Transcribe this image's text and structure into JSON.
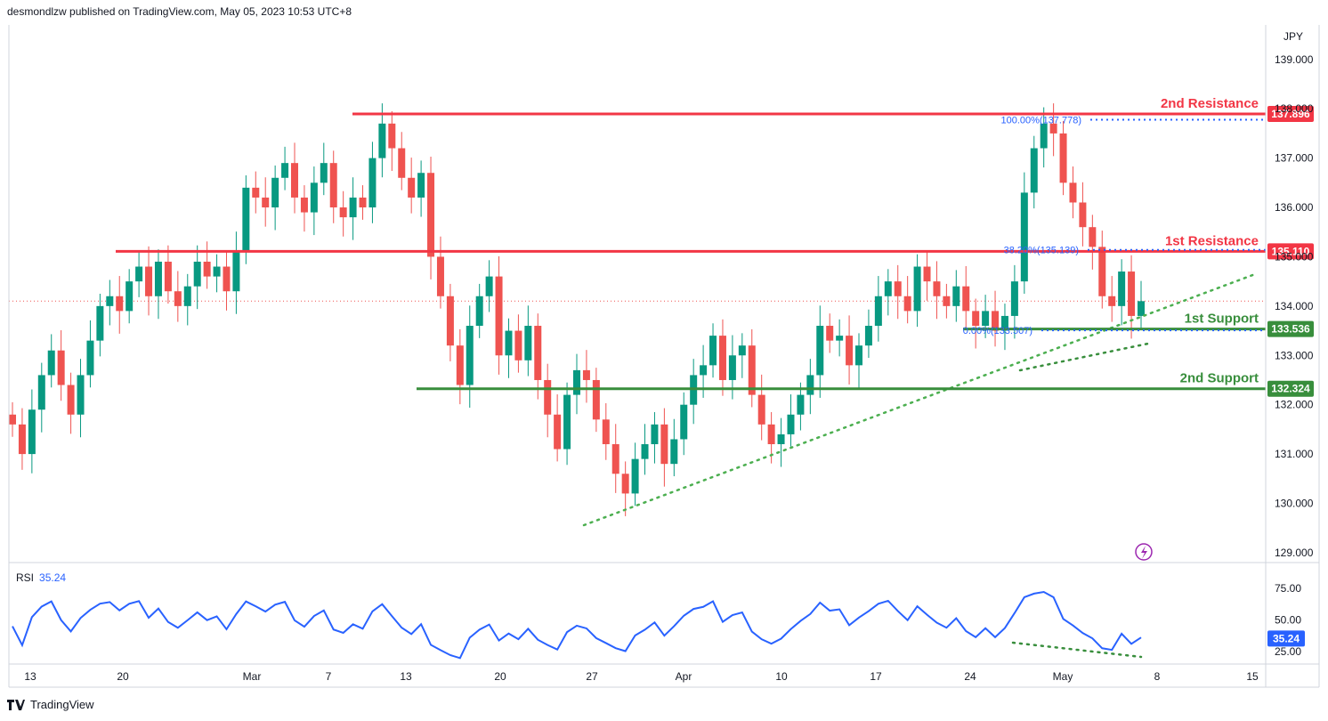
{
  "header": {
    "published": "desmondlzw published on TradingView.com, May 05, 2023 10:53 UTC+8"
  },
  "footer": {
    "brand": "TradingView"
  },
  "price_axis": {
    "currency": "JPY"
  },
  "rsi": {
    "label": "RSI",
    "value": "35.24",
    "ticks": [
      "75.00",
      "50.00",
      "25.00"
    ]
  },
  "colors": {
    "up": "#26a69a",
    "down": "#ef5350",
    "resistance": "#f23645",
    "support": "#388e3c",
    "rsi": "#2962ff",
    "fib": "#2962ff",
    "up_candle": "#089981"
  },
  "chart_data": {
    "type": "candlestick",
    "symbol_currency": "JPY",
    "price_ticks": [
      "139.000",
      "138.000",
      "137.000",
      "136.000",
      "135.000",
      "134.000",
      "133.000",
      "132.000",
      "131.000",
      "130.000",
      "129.000"
    ],
    "x_ticks": [
      "13",
      "20",
      "Mar",
      "7",
      "13",
      "20",
      "27",
      "Apr",
      "10",
      "17",
      "24",
      "May",
      "8",
      "15"
    ],
    "levels": [
      {
        "label": "2nd Resistance",
        "value": "137.896",
        "price": 137.896,
        "kind": "resistance"
      },
      {
        "label": "1st Resistance",
        "value": "135.110",
        "price": 135.11,
        "kind": "resistance"
      },
      {
        "label": "1st Support",
        "value": "133.536",
        "price": 133.536,
        "kind": "support"
      },
      {
        "label": "2nd Support",
        "value": "132.324",
        "price": 132.324,
        "kind": "support"
      }
    ],
    "fib": [
      {
        "label": "100.00%(137.778)",
        "price": 137.778
      },
      {
        "label": "38.20%(135.139)",
        "price": 135.139
      },
      {
        "label": "0.00%(133.507)",
        "price": 133.507
      }
    ],
    "trendlines": [
      {
        "from": [
          0,
          129.7
        ],
        "to": [
          1,
          134.7
        ]
      },
      {
        "from": [
          0,
          132.8
        ],
        "to": [
          1,
          133.3
        ]
      }
    ],
    "close_series": [
      131.6,
      131.0,
      131.9,
      132.6,
      133.1,
      132.4,
      131.8,
      132.6,
      133.3,
      134.0,
      134.2,
      133.9,
      134.5,
      134.8,
      134.2,
      134.9,
      134.3,
      134.0,
      134.4,
      134.9,
      134.6,
      134.8,
      134.3,
      135.1,
      136.4,
      136.2,
      136.0,
      136.6,
      136.9,
      136.2,
      135.9,
      136.5,
      136.9,
      136.0,
      135.8,
      136.2,
      136.0,
      137.0,
      137.7,
      137.2,
      136.6,
      136.2,
      136.7,
      135.0,
      134.2,
      133.2,
      132.4,
      133.6,
      134.2,
      134.6,
      133.0,
      133.5,
      132.9,
      133.6,
      132.5,
      131.8,
      131.1,
      132.2,
      132.7,
      132.5,
      131.7,
      131.2,
      130.6,
      130.2,
      130.9,
      131.2,
      131.6,
      130.8,
      131.3,
      132.0,
      132.6,
      132.8,
      133.4,
      132.5,
      133.0,
      133.2,
      132.2,
      131.6,
      131.2,
      131.4,
      131.8,
      132.2,
      132.6,
      133.6,
      133.3,
      133.4,
      132.8,
      133.2,
      133.6,
      134.2,
      134.5,
      134.2,
      133.9,
      134.8,
      134.5,
      134.2,
      134.0,
      134.4,
      133.9,
      133.6,
      133.9,
      133.5,
      133.8,
      134.5,
      136.3,
      137.2,
      137.7,
      137.5,
      136.5,
      136.1,
      135.6,
      135.2,
      134.2,
      134.0,
      134.7,
      133.8,
      134.1
    ]
  }
}
